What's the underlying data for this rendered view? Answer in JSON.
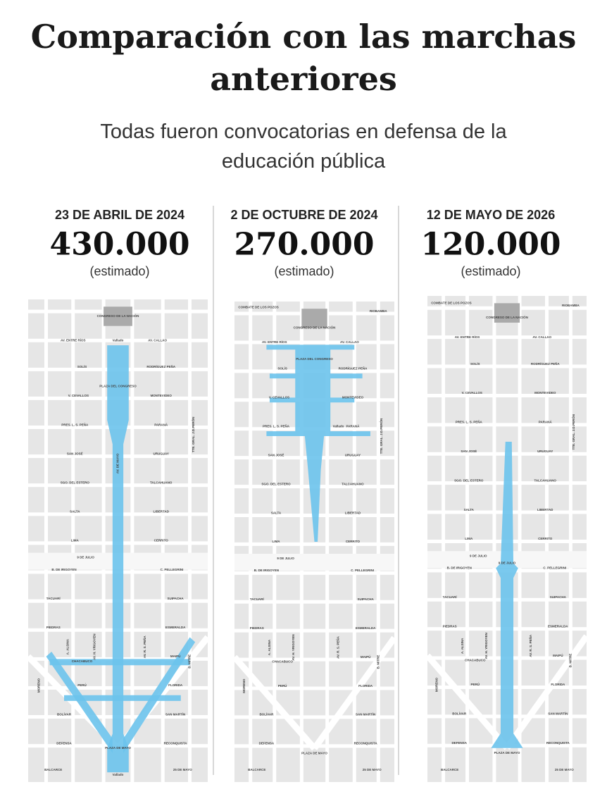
{
  "header": {
    "title": "Comparación con las marchas anteriores",
    "subtitle": "Todas fueron convocatorias en defensa de la educación pública"
  },
  "panels": [
    {
      "date": "23 DE ABRIL DE 2024",
      "count": "430.000",
      "note": "(estimado)",
      "extra_labels": [
        "CONGRESO DE LA NACIÓN",
        "Vallado",
        "PLAZA DEL CONGRESO",
        "AV. DE MAYO",
        "PLAZA DE MAYO",
        "Vallado"
      ]
    },
    {
      "date": "2 DE OCTUBRE DE 2024",
      "count": "270.000",
      "note": "(estimado)",
      "extra_labels": [
        "CONGRESO DE LA NACIÓN",
        "COMBATE DE LOS POZOS",
        "RIOBAMBA",
        "PLAZA DEL CONGRESO",
        "Vallado",
        "PLAZA DE MAYO"
      ]
    },
    {
      "date": "12 DE MAYO DE 2026",
      "count": "120.000",
      "note": "(estimado)",
      "extra_labels": [
        "CONGRESO DE LA NACIÓN",
        "COMBATE DE LOS POZOS",
        "RIOBAMBA",
        "9 DE JULIO",
        "PLAZA DE MAYO"
      ]
    }
  ],
  "street_labels": [
    "AV. ENTRE RÍOS",
    "AV. CALLAO",
    "SOLÍS",
    "RODRÍGUEZ PEÑA",
    "V. CEVALLOS",
    "MONTEVIDEO",
    "PRES. L. S. PEÑA",
    "PARANÁ",
    "SAN JOSÉ",
    "URUGUAY",
    "SGO. DEL ESTERO",
    "TALCAHUANO",
    "SALTA",
    "LIBERTAD",
    "LIMA",
    "CERRITO",
    "9 DE JULIO",
    "B. DE IRIGOYEN",
    "C. PELLEGRINI",
    "TACUARÍ",
    "SUIPACHA",
    "PIEDRAS",
    "ESMERALDA",
    "CHACABUCO",
    "MAIPÚ",
    "PERÚ",
    "FLORIDA",
    "BOLÍVAR",
    "SAN MARTÍN",
    "DEFENSA",
    "RECONQUISTA",
    "BALCARCE",
    "25 DE MAYO",
    "AV. H. YRIGOYEN",
    "AV. R. S. PEÑA",
    "B. MITRE",
    "MORENO",
    "A. ALSINA",
    "TTE. GRAL. J.D.PERÓN"
  ]
}
